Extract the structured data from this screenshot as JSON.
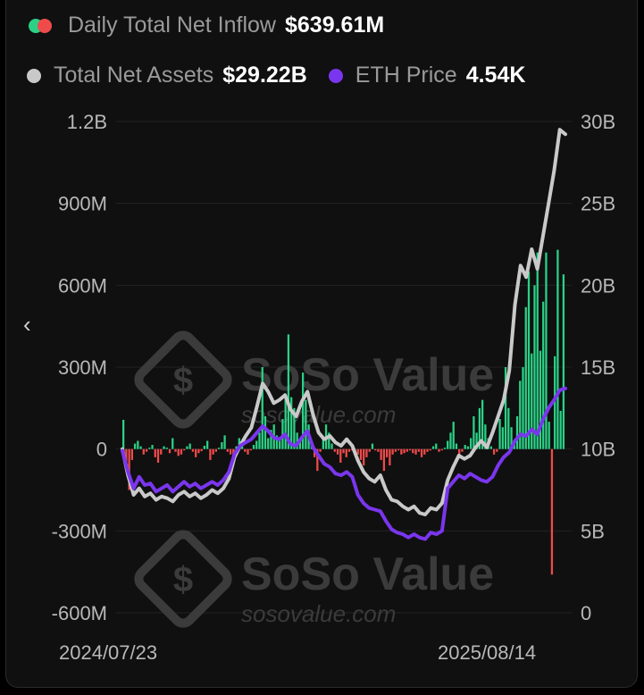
{
  "legend": {
    "inflow_label": "Daily Total Net Inflow",
    "inflow_value": "$639.61M",
    "assets_label": "Total Net Assets",
    "assets_value": "$29.22B",
    "price_label": "ETH Price",
    "price_value": "4.54K"
  },
  "nav": {
    "back_icon": "chevron-left-icon",
    "back_glyph": "‹"
  },
  "watermark": {
    "brand": "SoSo Value",
    "url": "sosovalue.com"
  },
  "colors": {
    "inflow_positive": "#2bd186",
    "inflow_negative": "#f04b4b",
    "assets_line": "#c9c9c9",
    "price_line": "#7a36ee"
  },
  "chart_data": {
    "type": "bar",
    "x_start_label": "2024/07/23",
    "x_end_label": "2025/08/14",
    "left_axis": {
      "ticks": [
        "1.2B",
        "900M",
        "600M",
        "300M",
        "0",
        "-300M",
        "-600M"
      ],
      "values": [
        1200,
        900,
        600,
        300,
        0,
        -300,
        -600
      ],
      "unit": "M",
      "ylim": [
        -600,
        1200
      ]
    },
    "right_axis": {
      "ticks": [
        "30B",
        "25B",
        "20B",
        "15B",
        "10B",
        "5B",
        "0"
      ],
      "values": [
        30,
        25,
        20,
        15,
        10,
        5,
        0
      ],
      "unit": "B",
      "ylim": [
        0,
        30
      ]
    },
    "grid": true,
    "series": [
      {
        "name": "Daily Total Net Inflow",
        "kind": "bar",
        "axis": "left",
        "values": [
          107,
          -80,
          -150,
          -40,
          20,
          30,
          10,
          -20,
          -10,
          5,
          15,
          -30,
          -50,
          -20,
          10,
          5,
          -15,
          40,
          -10,
          -25,
          -20,
          -5,
          10,
          20,
          -10,
          -30,
          -15,
          -8,
          12,
          30,
          -40,
          -20,
          -10,
          5,
          25,
          50,
          -10,
          -20,
          -30,
          10,
          40,
          20,
          -10,
          -20,
          -5,
          15,
          30,
          60,
          300,
          120,
          40,
          70,
          90,
          50,
          30,
          110,
          190,
          420,
          190,
          150,
          60,
          30,
          280,
          180,
          90,
          30,
          -30,
          -80,
          -10,
          40,
          90,
          60,
          20,
          -10,
          -20,
          -50,
          -15,
          -30,
          -10,
          -5,
          -25,
          -20,
          -40,
          -60,
          -30,
          -10,
          20,
          -5,
          -10,
          -40,
          -80,
          -30,
          -60,
          -20,
          -10,
          -5,
          -20,
          -15,
          -10,
          -5,
          -15,
          -20,
          -10,
          -30,
          -20,
          -10,
          -5,
          10,
          20,
          -10,
          -5,
          5,
          30,
          60,
          100,
          20,
          -20,
          -10,
          15,
          10,
          40,
          120,
          60,
          150,
          180,
          90,
          40,
          10,
          -20,
          -10,
          110,
          80,
          300,
          150,
          80,
          30,
          120,
          250,
          300,
          520,
          650,
          350,
          600,
          720,
          360,
          540,
          720,
          100,
          -460,
          340,
          730,
          140,
          640
        ],
        "sample_values": [
          107,
          -80,
          -150,
          300,
          120,
          420,
          280,
          -80,
          -60,
          -80,
          -40,
          100,
          180,
          300,
          520,
          720,
          720,
          -460,
          730,
          640
        ]
      },
      {
        "name": "Total Net Assets",
        "kind": "line",
        "axis": "right",
        "values": [
          10.0,
          8.4,
          7.2,
          7.6,
          7.1,
          7.3,
          6.9,
          7.1,
          7.0,
          6.8,
          7.2,
          7.4,
          7.1,
          7.3,
          7.0,
          7.2,
          7.5,
          7.3,
          7.6,
          8.2,
          9.5,
          10.2,
          10.8,
          11.3,
          12.6,
          14.0,
          13.5,
          12.8,
          13.0,
          13.3,
          12.4,
          12.0,
          12.9,
          13.5,
          12.1,
          11.0,
          10.6,
          10.8,
          10.4,
          10.2,
          10.6,
          10.2,
          9.3,
          8.6,
          8.2,
          8.0,
          8.4,
          7.5,
          6.9,
          6.8,
          6.5,
          6.3,
          6.5,
          6.1,
          6.0,
          6.4,
          6.3,
          6.7,
          8.1,
          8.9,
          9.6,
          9.4,
          9.6,
          10.1,
          10.5,
          10.1,
          11.0,
          12.0,
          13.0,
          14.8,
          18.8,
          21.2,
          20.5,
          22.2,
          21.0,
          23.0,
          25.0,
          27.0,
          29.5,
          29.22
        ],
        "ylim": [
          0,
          30
        ]
      },
      {
        "name": "ETH Price",
        "kind": "line",
        "axis": "right",
        "values": [
          9.9,
          8.6,
          7.6,
          8.3,
          7.8,
          7.9,
          7.4,
          7.6,
          7.8,
          7.4,
          7.7,
          8.0,
          7.7,
          7.9,
          7.6,
          7.8,
          8.0,
          7.8,
          8.1,
          8.6,
          9.7,
          10.2,
          10.4,
          10.6,
          11.0,
          11.4,
          11.1,
          10.7,
          10.6,
          10.9,
          10.3,
          10.2,
          10.7,
          11.1,
          10.1,
          9.6,
          9.1,
          8.9,
          8.5,
          8.4,
          8.6,
          8.3,
          7.2,
          6.7,
          6.4,
          6.3,
          6.2,
          5.6,
          5.1,
          4.9,
          4.8,
          4.6,
          4.8,
          4.6,
          4.5,
          4.9,
          4.8,
          5.0,
          7.6,
          8.0,
          8.4,
          8.2,
          8.5,
          8.3,
          8.1,
          8.0,
          8.3,
          9.0,
          9.5,
          9.8,
          10.5,
          10.9,
          10.8,
          11.2,
          10.9,
          11.8,
          12.5,
          13.0,
          13.6,
          13.7
        ],
        "ylim": [
          0,
          30
        ]
      }
    ]
  }
}
